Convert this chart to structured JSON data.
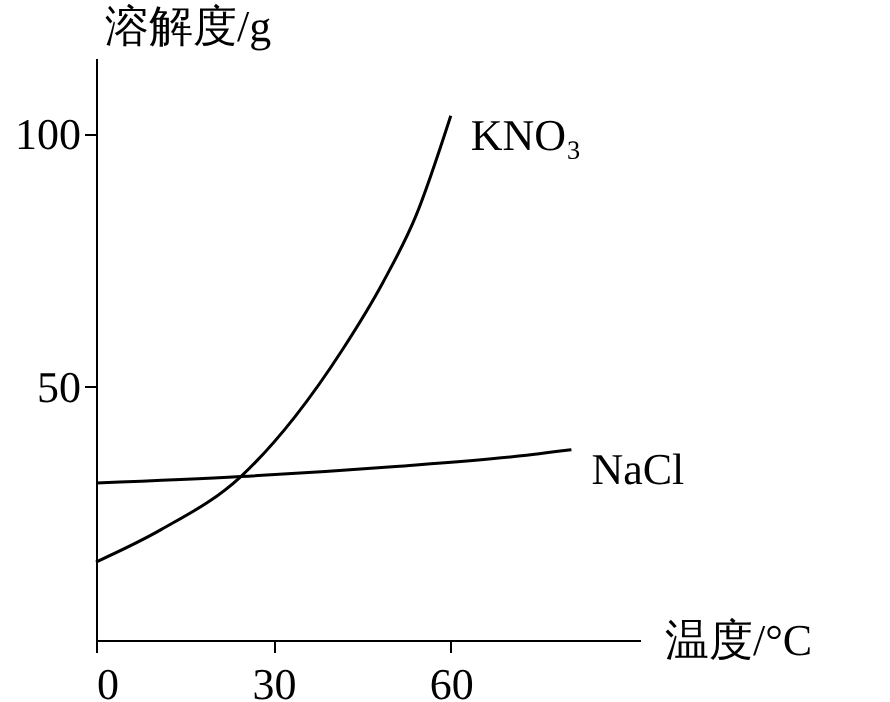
{
  "chart_data": {
    "type": "line",
    "xlabel": "温度/°C",
    "ylabel": "溶解度/g",
    "xlim": [
      0,
      92
    ],
    "ylim": [
      0,
      115
    ],
    "xticks": [
      0,
      30,
      60
    ],
    "yticks": [
      50,
      100
    ],
    "grid": false,
    "legend": false,
    "marker": "none",
    "line_style": "solid",
    "series": [
      {
        "name": "KNO₃",
        "color": "#000000",
        "x": [
          0,
          11,
          24.5,
          33.7,
          41.7,
          48.5,
          54.1,
          60
        ],
        "values": [
          15.4,
          21.8,
          32.3,
          44.2,
          57.4,
          70.6,
          83.8,
          103.6
        ]
      },
      {
        "name": "NaCl",
        "color": "#000000",
        "x": [
          0,
          24.5,
          50.7,
          71.1,
          80.4
        ],
        "values": [
          31,
          32.3,
          34.3,
          36.3,
          37.6
        ]
      }
    ]
  }
}
